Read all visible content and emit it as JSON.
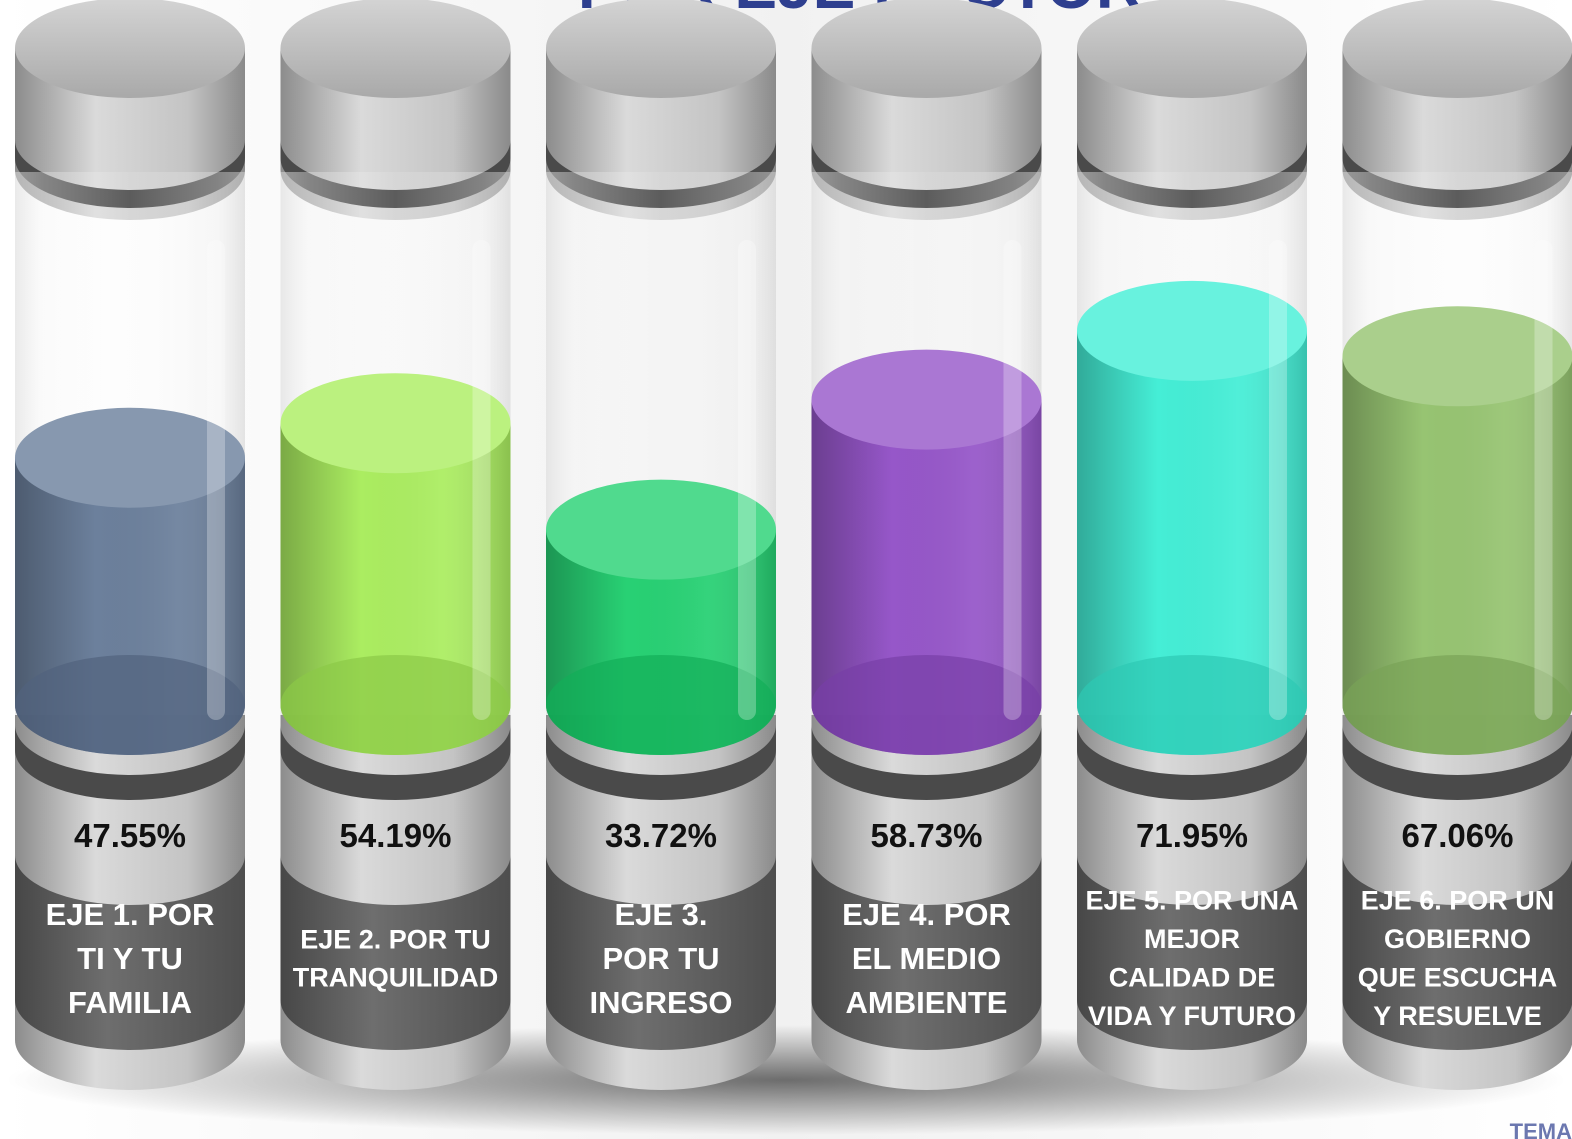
{
  "chart_data": {
    "type": "bar",
    "title": "POR EJE RECTOR",
    "ylim": [
      0,
      100
    ],
    "categories": [
      "EJE 1. POR TI Y TU FAMILIA",
      "EJE 2. POR TU TRANQUILIDAD",
      "EJE 3. POR TU INGRESO",
      "EJE 4. POR EL MEDIO AMBIENTE",
      "EJE 5. POR UNA MEJOR CALIDAD DE VIDA Y FUTURO",
      "EJE 6. POR UN GOBIERNO QUE ESCUCHA Y RESUELVE"
    ],
    "category_lines": [
      [
        "EJE 1. POR",
        "TI Y TU",
        "FAMILIA"
      ],
      [
        "EJE 2. POR TU",
        "TRANQUILIDAD"
      ],
      [
        "EJE 3.",
        "POR TU",
        "INGRESO"
      ],
      [
        "EJE 4. POR",
        "EL MEDIO",
        "AMBIENTE"
      ],
      [
        "EJE 5. POR UNA",
        "MEJOR",
        "CALIDAD DE",
        "VIDA Y FUTURO"
      ],
      [
        "EJE 6. POR UN",
        "GOBIERNO",
        "QUE ESCUCHA",
        "Y RESUELVE"
      ]
    ],
    "values": [
      47.55,
      54.19,
      33.72,
      58.73,
      71.95,
      67.06
    ],
    "value_labels": [
      "47.55%",
      "54.19%",
      "33.72%",
      "58.73%",
      "71.95%",
      "67.06%"
    ],
    "colors": [
      "#5f7594",
      "#a4ec54",
      "#16cd68",
      "#8d49c4",
      "#35edd3",
      "#8ebf66"
    ],
    "corner_text": "TEMA"
  },
  "style": {
    "title_color": "#2e3f8f",
    "cap_color": "#b5b5b5",
    "band_color": "#606060",
    "text_dark": "#111111",
    "text_light": "#ffffff"
  }
}
